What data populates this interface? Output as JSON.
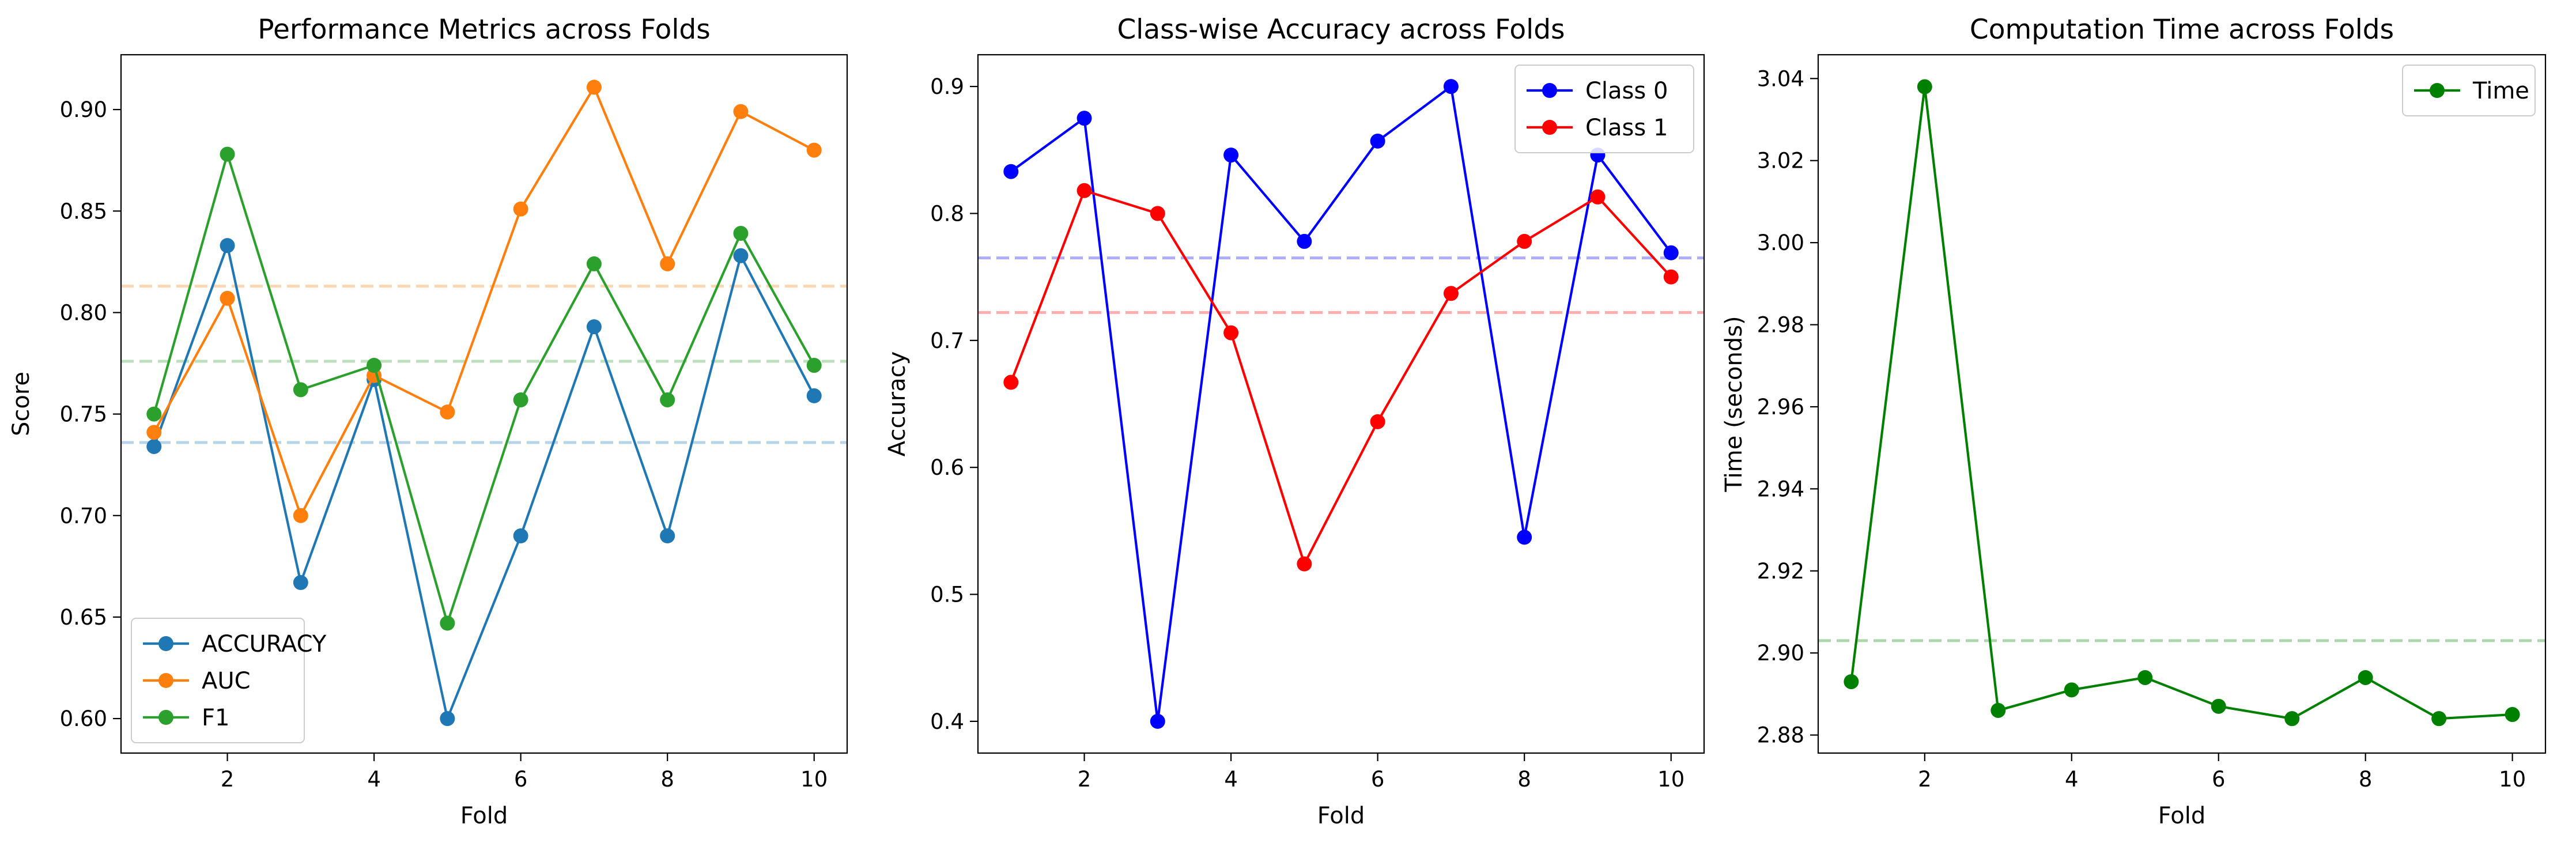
{
  "chart_data": [
    {
      "type": "line",
      "title": "Performance Metrics across Folds",
      "xlabel": "Fold",
      "ylabel": "Score",
      "xlim": [
        0.55,
        10.45
      ],
      "ylim": [
        0.583,
        0.927
      ],
      "xticks": [
        2,
        4,
        6,
        8,
        10
      ],
      "yticks": [
        0.6,
        0.65,
        0.7,
        0.75,
        0.8,
        0.85,
        0.9
      ],
      "ytick_format": 2,
      "x": [
        1,
        2,
        3,
        4,
        5,
        6,
        7,
        8,
        9,
        10
      ],
      "legend_position": "lower-left",
      "grid": false,
      "series": [
        {
          "name": "ACCURACY",
          "color": "#1f77b4",
          "values": [
            0.734,
            0.833,
            0.667,
            0.767,
            0.6,
            0.69,
            0.793,
            0.69,
            0.828,
            0.759
          ]
        },
        {
          "name": "AUC",
          "color": "#ff7f0e",
          "values": [
            0.741,
            0.807,
            0.7,
            0.769,
            0.751,
            0.851,
            0.911,
            0.824,
            0.899,
            0.88
          ]
        },
        {
          "name": "F1",
          "color": "#2ca02c",
          "values": [
            0.75,
            0.878,
            0.762,
            0.774,
            0.647,
            0.757,
            0.824,
            0.757,
            0.839,
            0.774
          ]
        }
      ],
      "reference_lines": [
        {
          "y": 0.736,
          "color": "#1f77b4"
        },
        {
          "y": 0.776,
          "color": "#2ca02c"
        },
        {
          "y": 0.813,
          "color": "#ff7f0e"
        }
      ]
    },
    {
      "type": "line",
      "title": "Class-wise Accuracy across Folds",
      "xlabel": "Fold",
      "ylabel": "Accuracy",
      "xlim": [
        0.55,
        10.45
      ],
      "ylim": [
        0.375,
        0.925
      ],
      "xticks": [
        2,
        4,
        6,
        8,
        10
      ],
      "yticks": [
        0.4,
        0.5,
        0.6,
        0.7,
        0.8,
        0.9
      ],
      "ytick_format": 1,
      "x": [
        1,
        2,
        3,
        4,
        5,
        6,
        7,
        8,
        9,
        10
      ],
      "legend_position": "upper-right",
      "grid": false,
      "series": [
        {
          "name": "Class 0",
          "color": "#0000ff",
          "values": [
            0.833,
            0.875,
            0.4,
            0.846,
            0.778,
            0.857,
            0.9,
            0.545,
            0.846,
            0.769
          ]
        },
        {
          "name": "Class 1",
          "color": "#ff0000",
          "values": [
            0.667,
            0.818,
            0.8,
            0.706,
            0.524,
            0.636,
            0.737,
            0.778,
            0.813,
            0.75
          ]
        }
      ],
      "reference_lines": [
        {
          "y": 0.765,
          "color": "#0000ff"
        },
        {
          "y": 0.722,
          "color": "#ff0000"
        }
      ]
    },
    {
      "type": "line",
      "title": "Computation Time across Folds",
      "xlabel": "Fold",
      "ylabel": "Time (seconds)",
      "xlim": [
        0.55,
        10.45
      ],
      "ylim": [
        2.8756,
        3.0458
      ],
      "xticks": [
        2,
        4,
        6,
        8,
        10
      ],
      "yticks": [
        2.88,
        2.9,
        2.92,
        2.94,
        2.96,
        2.98,
        3.0,
        3.02,
        3.04
      ],
      "ytick_format": 2,
      "x": [
        1,
        2,
        3,
        4,
        5,
        6,
        7,
        8,
        9,
        10
      ],
      "legend_position": "upper-right",
      "grid": false,
      "series": [
        {
          "name": "Time",
          "color": "#008000",
          "values": [
            2.893,
            3.038,
            2.886,
            2.891,
            2.894,
            2.887,
            2.884,
            2.894,
            2.884,
            2.885
          ]
        }
      ],
      "reference_lines": [
        {
          "y": 2.903,
          "color": "#008000"
        }
      ]
    }
  ]
}
